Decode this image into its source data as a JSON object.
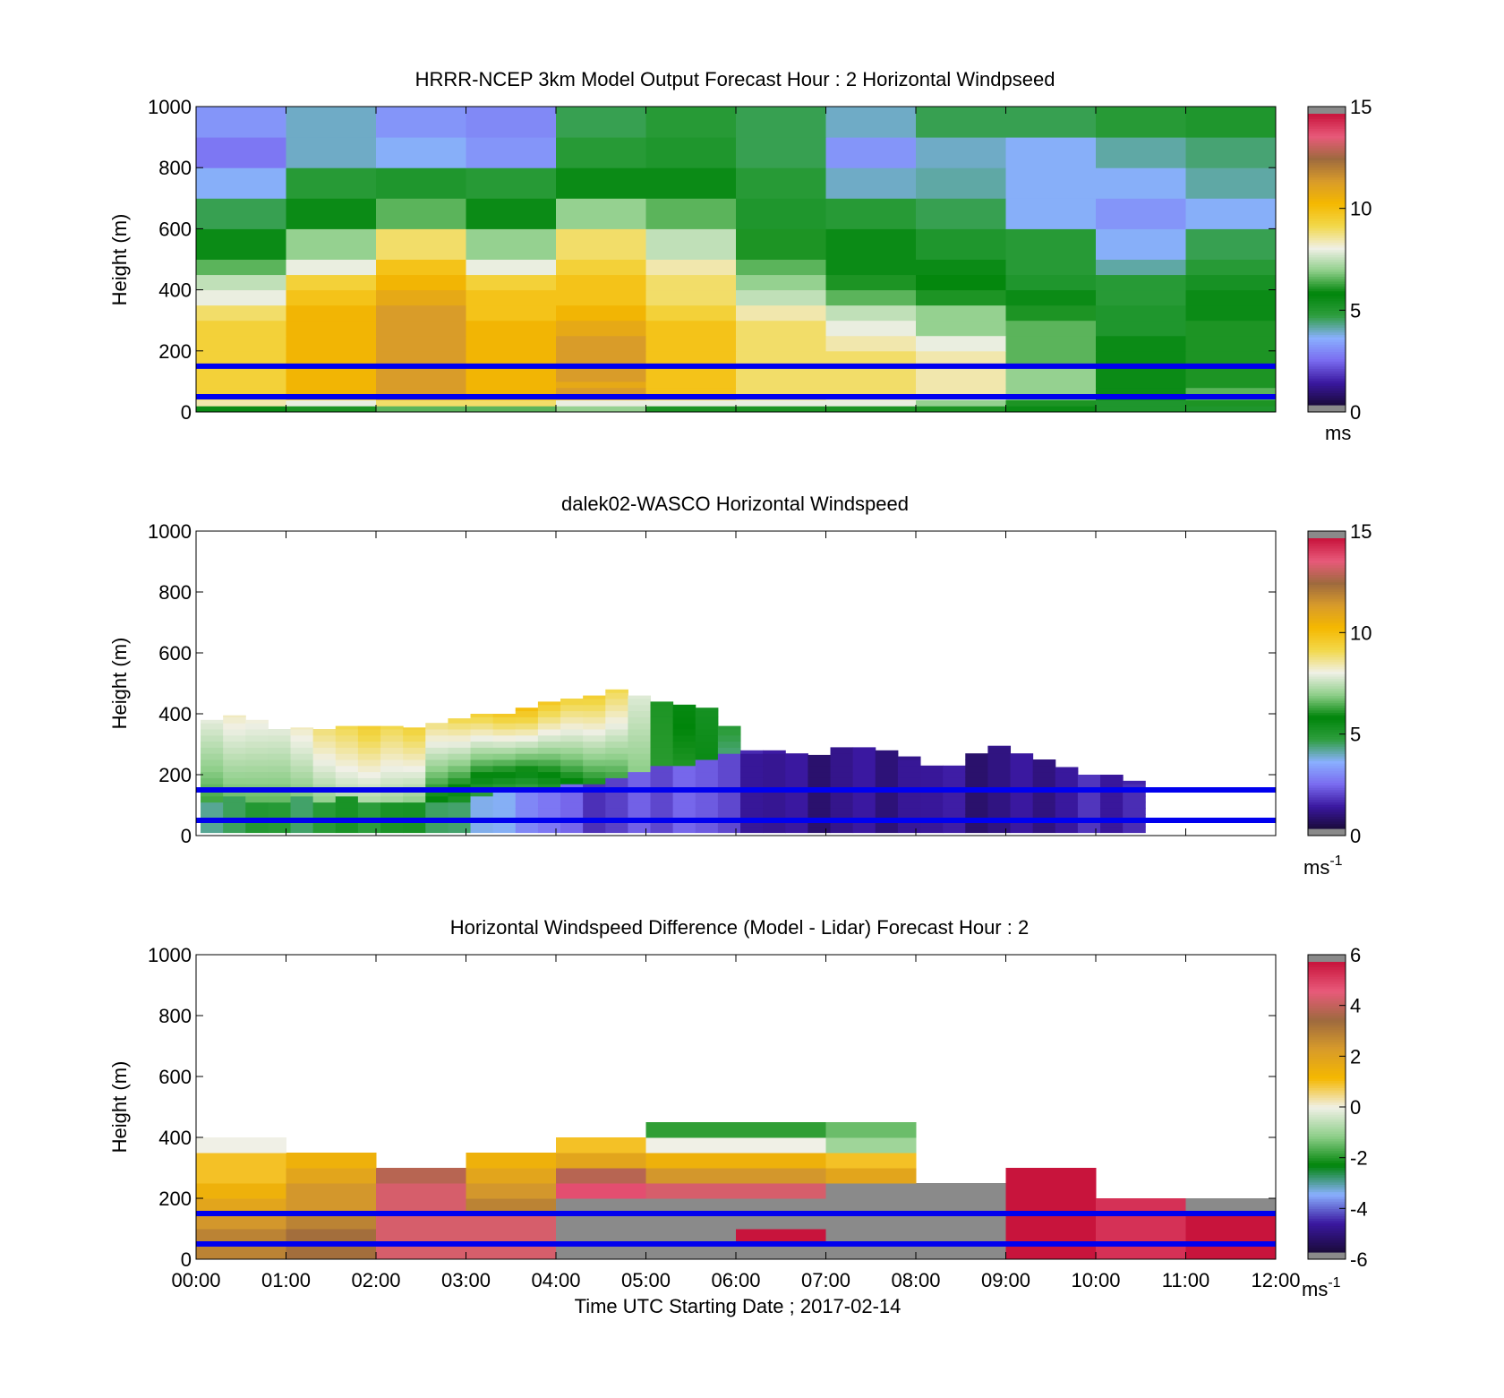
{
  "colors": {
    "reference_line": "#0000ee",
    "speed_colormap": [
      "#1a0a3a",
      "#3a18a0",
      "#7a6cf0",
      "#8ab0ff",
      "#2e9e3e",
      "#00850a",
      "#8fcf8a",
      "#f0f0e6",
      "#f2d84a",
      "#f5b800",
      "#d89b2a",
      "#9e6a3e",
      "#e85a7a",
      "#c8143c"
    ],
    "diff_colormap": [
      "#1a0a3a",
      "#3a18a0",
      "#8ab0ff",
      "#00850a",
      "#8fcf8a",
      "#f0f0e6",
      "#f5b800",
      "#d89b2a",
      "#9e6a3e",
      "#e85a7a",
      "#c8143c"
    ],
    "out_of_range": "#8a8a8a"
  },
  "chart_data": [
    {
      "id": "model",
      "type": "heatmap",
      "title": "HRRR-NCEP 3km Model Output   Forecast Hour : 2 Horizontal Windpseed",
      "ylabel": "Height (m)",
      "ylim": [
        0,
        1000
      ],
      "yticks": [
        "0",
        "200",
        "400",
        "600",
        "800",
        "1000"
      ],
      "xlim": [
        0,
        12
      ],
      "colorbar": {
        "label": "ms",
        "label_sup": "",
        "range": [
          0,
          15
        ],
        "ticks": [
          "0",
          "5",
          "10",
          "15"
        ]
      },
      "reference_lines_m": [
        150,
        50
      ],
      "x_centers_h": [
        0.5,
        1.5,
        2.5,
        3.5,
        4.5,
        5.5,
        6.5,
        7.5,
        8.5,
        9.5,
        10.5,
        11.5
      ],
      "height_bins_m": [
        [
          0,
          20
        ],
        [
          20,
          40
        ],
        [
          40,
          60
        ],
        [
          60,
          80
        ],
        [
          80,
          100
        ],
        [
          100,
          150
        ],
        [
          150,
          200
        ],
        [
          200,
          250
        ],
        [
          250,
          300
        ],
        [
          300,
          350
        ],
        [
          350,
          400
        ],
        [
          400,
          450
        ],
        [
          450,
          500
        ],
        [
          500,
          600
        ],
        [
          600,
          700
        ],
        [
          700,
          800
        ],
        [
          800,
          900
        ],
        [
          900,
          1000
        ]
      ],
      "values": [
        [
          5.5,
          6.0,
          6.5,
          6.5,
          7.0,
          6.0,
          6.0,
          6.0,
          6.0,
          5.5,
          5.0,
          5.0
        ],
        [
          8.5,
          8.0,
          9.0,
          9.0,
          8.0,
          8.0,
          8.0,
          8.0,
          7.0,
          6.0,
          5.0,
          6.0
        ],
        [
          9.0,
          10.0,
          11.5,
          10.5,
          11.0,
          10.0,
          9.0,
          8.5,
          8.0,
          7.0,
          5.5,
          6.5
        ],
        [
          9.5,
          10.5,
          11.5,
          10.5,
          11.5,
          10.0,
          9.0,
          9.0,
          8.5,
          7.0,
          5.5,
          6.5
        ],
        [
          9.5,
          10.5,
          11.5,
          10.5,
          11.0,
          10.0,
          9.0,
          9.0,
          8.5,
          7.0,
          5.5,
          6.0
        ],
        [
          9.5,
          10.5,
          11.5,
          10.5,
          11.5,
          10.0,
          9.0,
          9.0,
          8.5,
          7.0,
          5.5,
          6.0
        ],
        [
          9.5,
          10.5,
          11.5,
          10.5,
          11.5,
          10.0,
          9.0,
          9.0,
          8.5,
          6.5,
          5.5,
          6.0
        ],
        [
          9.5,
          10.5,
          11.5,
          10.5,
          11.5,
          10.0,
          9.0,
          8.5,
          8.0,
          6.5,
          5.5,
          6.0
        ],
        [
          9.5,
          10.5,
          11.5,
          10.5,
          11.0,
          10.0,
          9.0,
          8.0,
          7.0,
          6.5,
          5.0,
          6.0
        ],
        [
          9.0,
          10.5,
          11.5,
          10.0,
          10.5,
          9.5,
          8.5,
          7.5,
          7.0,
          6.0,
          5.0,
          5.5
        ],
        [
          8.0,
          10.0,
          11.0,
          10.0,
          10.0,
          9.0,
          7.5,
          6.5,
          6.0,
          5.5,
          4.8,
          5.5
        ],
        [
          7.5,
          9.5,
          10.5,
          9.5,
          10.0,
          9.0,
          7.0,
          6.0,
          5.8,
          5.0,
          4.8,
          5.2
        ],
        [
          6.5,
          8.0,
          10.0,
          8.0,
          9.5,
          8.5,
          6.5,
          5.5,
          5.5,
          4.8,
          4.0,
          4.8
        ],
        [
          5.5,
          7.0,
          9.0,
          7.0,
          9.0,
          7.5,
          6.0,
          5.5,
          5.0,
          4.8,
          3.5,
          4.5
        ],
        [
          4.5,
          5.5,
          6.5,
          5.5,
          7.0,
          6.5,
          5.0,
          4.8,
          4.5,
          3.5,
          3.0,
          3.5
        ],
        [
          3.5,
          4.8,
          5.0,
          4.8,
          5.5,
          5.5,
          4.8,
          3.8,
          4.0,
          3.5,
          3.5,
          4.0
        ],
        [
          2.5,
          3.8,
          3.5,
          3.0,
          4.8,
          5.0,
          4.5,
          3.0,
          3.8,
          3.5,
          4.0,
          4.3
        ],
        [
          3.0,
          3.8,
          3.0,
          2.8,
          4.5,
          4.8,
          4.5,
          3.8,
          4.5,
          4.5,
          4.8,
          5.0
        ]
      ]
    },
    {
      "id": "lidar",
      "type": "heatmap",
      "title": "dalek02-WASCO  Horizontal Windspeed",
      "ylabel": "Height (m)",
      "ylim": [
        0,
        1000
      ],
      "yticks": [
        "0",
        "200",
        "400",
        "600",
        "800",
        "1000"
      ],
      "xlim": [
        0,
        12
      ],
      "colorbar": {
        "label": "ms",
        "label_sup": "-1",
        "range": [
          0,
          15
        ],
        "ticks": [
          "0",
          "5",
          "10",
          "15"
        ]
      },
      "reference_lines_m": [
        150,
        50
      ],
      "time_step_h": 0.25,
      "top_m": [
        380,
        395,
        380,
        350,
        355,
        350,
        360,
        360,
        360,
        355,
        370,
        385,
        400,
        400,
        420,
        440,
        450,
        460,
        480,
        460,
        440,
        430,
        420,
        360,
        280,
        280,
        270,
        265,
        290,
        290,
        280,
        260,
        230,
        230,
        270,
        295,
        270,
        250,
        225,
        200,
        200,
        180
      ],
      "boundary_m": [
        110,
        115,
        110,
        110,
        120,
        110,
        115,
        100,
        100,
        100,
        95,
        105,
        130,
        140,
        145,
        150,
        160,
        170,
        185,
        200,
        215,
        230,
        250,
        265,
        270,
        270,
        265,
        260,
        280,
        280,
        270,
        250,
        220,
        220,
        260,
        280,
        260,
        240,
        220,
        195,
        195,
        170
      ],
      "low_speed_m_s": [
        4.5,
        4.6,
        4.8,
        4.5,
        4.6,
        4.8,
        4.9,
        5.0,
        5.2,
        5.0,
        4.8,
        4.5,
        3.5,
        3.2,
        3.0,
        2.5,
        2.0,
        1.8,
        1.8,
        2.0,
        2.2,
        2.4,
        2.0,
        1.5,
        1.3,
        1.0,
        0.9,
        0.9,
        1.0,
        1.0,
        1.1,
        1.2,
        1.0,
        0.9,
        0.8,
        0.8,
        0.9,
        1.1,
        1.2,
        1.4,
        1.5,
        1.6
      ],
      "mid_speed_m_s": [
        6.8,
        7.0,
        6.9,
        6.8,
        6.9,
        7.0,
        7.2,
        7.0,
        6.8,
        6.5,
        6.0,
        5.5,
        5.0,
        4.8,
        4.6,
        5.0,
        5.5,
        5.8,
        6.0,
        6.5,
        6.6,
        6.4,
        5.8,
        4.5,
        1.5,
        1.2,
        1.0,
        1.0,
        1.1,
        1.1,
        1.2,
        1.3,
        1.1,
        1.0,
        0.9,
        0.9,
        1.0,
        1.2,
        1.3,
        1.5,
        1.6,
        1.7
      ],
      "top_speed_m_s": [
        8.5,
        8.8,
        8.5,
        8.2,
        8.5,
        9.0,
        9.2,
        9.5,
        9.0,
        9.2,
        9.5,
        9.8,
        10.0,
        10.2,
        10.5,
        10.0,
        9.5,
        9.5,
        9.0,
        7.5,
        6.5,
        6.0,
        5.5,
        5.0,
        1.5,
        1.3,
        1.0,
        1.0,
        1.1,
        1.1,
        1.2,
        1.3,
        1.1,
        1.0,
        0.9,
        0.9,
        1.0,
        1.2,
        1.3,
        1.5,
        1.6,
        1.7
      ]
    },
    {
      "id": "difference",
      "type": "heatmap",
      "title": "Horizontal Windspeed Difference (Model - Lidar) Forecast Hour : 2",
      "ylabel": "Height (m)",
      "xlabel": "Time UTC  Starting Date ; 2017-02-14",
      "ylim": [
        0,
        1000
      ],
      "yticks": [
        "0",
        "200",
        "400",
        "600",
        "800",
        "1000"
      ],
      "xlim": [
        0,
        12
      ],
      "xticks": [
        "00:00",
        "01:00",
        "02:00",
        "03:00",
        "04:00",
        "05:00",
        "06:00",
        "07:00",
        "08:00",
        "09:00",
        "10:00",
        "11:00",
        "12:00"
      ],
      "colorbar": {
        "label": "ms",
        "label_sup": "-1",
        "range": [
          -6,
          6
        ],
        "ticks": [
          "-6",
          "-4",
          "-2",
          "0",
          "2",
          "4",
          "6"
        ]
      },
      "reference_lines_m": [
        150,
        50
      ],
      "x_centers_h": [
        0.5,
        1.5,
        2.5,
        3.5,
        4.5,
        5.5,
        6.5,
        7.5,
        8.5,
        9.5,
        10.5,
        11.5
      ],
      "height_bins_m": [
        [
          0,
          50
        ],
        [
          50,
          100
        ],
        [
          100,
          150
        ],
        [
          150,
          200
        ],
        [
          200,
          250
        ],
        [
          250,
          300
        ],
        [
          300,
          350
        ],
        [
          350,
          400
        ],
        [
          400,
          450
        ]
      ],
      "values": [
        [
          3.0,
          3.5,
          4.5,
          4.5,
          9.0,
          9.0,
          9.0,
          9.0,
          9.0,
          6.0,
          5.5,
          6.0
        ],
        [
          3.0,
          3.5,
          4.5,
          4.5,
          9.0,
          9.0,
          6.0,
          9.0,
          9.0,
          6.0,
          5.5,
          6.0
        ],
        [
          2.5,
          3.0,
          4.5,
          4.5,
          9.0,
          9.0,
          9.0,
          9.0,
          9.0,
          6.0,
          5.5,
          6.0
        ],
        [
          2.0,
          2.5,
          4.5,
          3.0,
          9.0,
          9.0,
          9.0,
          9.0,
          9.0,
          6.0,
          5.5,
          9.0
        ],
        [
          1.5,
          2.5,
          4.5,
          2.5,
          5.0,
          4.5,
          4.5,
          9.0,
          9.0,
          6.0,
          null,
          null
        ],
        [
          1.0,
          2.0,
          4.0,
          2.0,
          4.0,
          2.5,
          2.5,
          2.0,
          null,
          6.0,
          null,
          null
        ],
        [
          1.0,
          1.5,
          null,
          1.5,
          2.0,
          1.5,
          1.5,
          1.0,
          null,
          null,
          null,
          null
        ],
        [
          0.0,
          null,
          null,
          null,
          1.0,
          0.0,
          0.0,
          -1.0,
          null,
          null,
          null,
          null
        ],
        [
          null,
          null,
          null,
          null,
          null,
          -2.0,
          -2.0,
          -1.5,
          null,
          null,
          null,
          null
        ]
      ]
    }
  ]
}
